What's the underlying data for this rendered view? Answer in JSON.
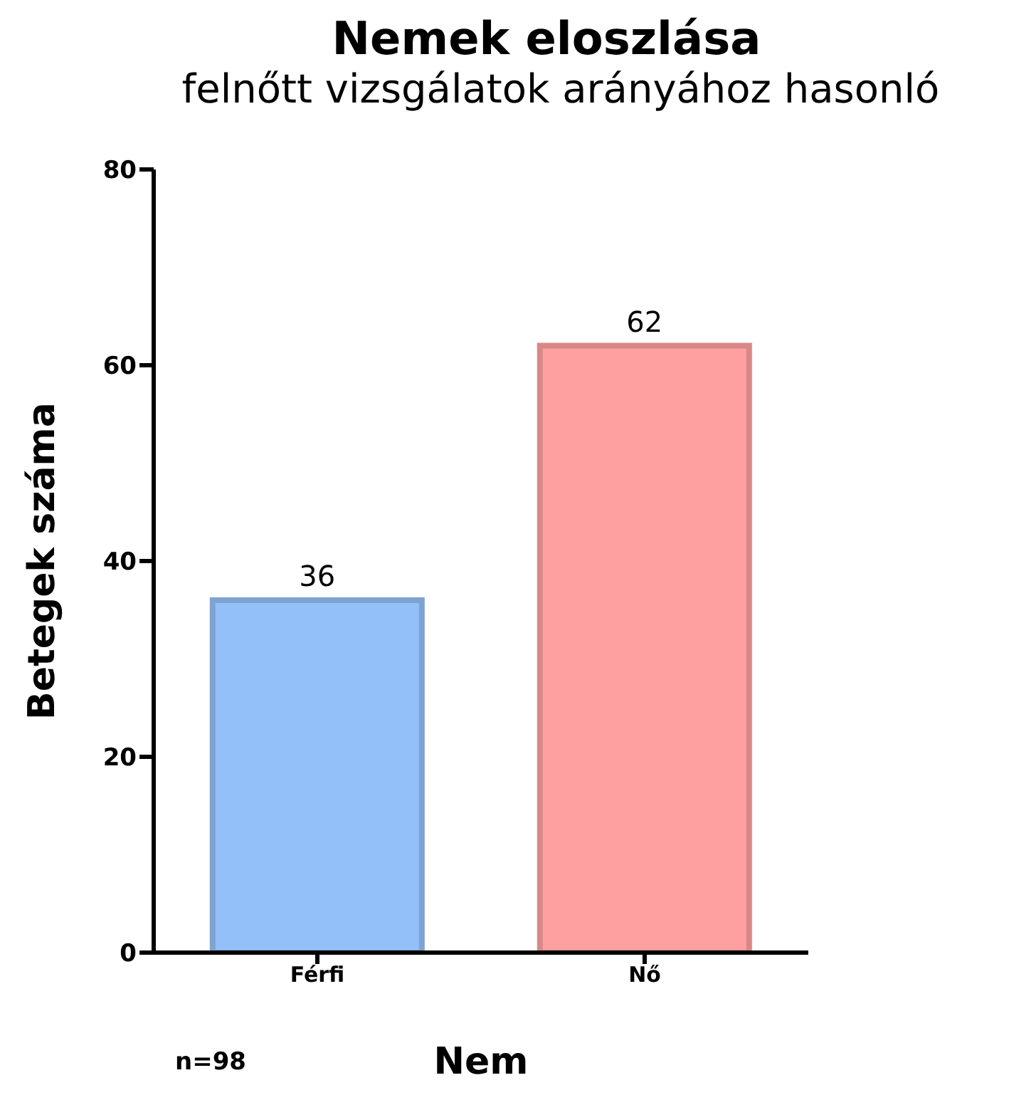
{
  "chart_data": {
    "type": "bar",
    "title": "Nemek eloszlása",
    "subtitle": "felnőtt vizsgálatok arányához hasonló",
    "xlabel": "Nem",
    "ylabel": "Betegek száma",
    "categories": [
      "Férfi",
      "Nő"
    ],
    "values": [
      36,
      62
    ],
    "colors": [
      "#93c0f8",
      "#ffa0a0"
    ],
    "ylim": [
      0,
      80
    ],
    "yticks": [
      0,
      20,
      40,
      60,
      80
    ],
    "grid": false,
    "legend": false,
    "data_labels": true,
    "annotations": [
      "n=98"
    ]
  }
}
